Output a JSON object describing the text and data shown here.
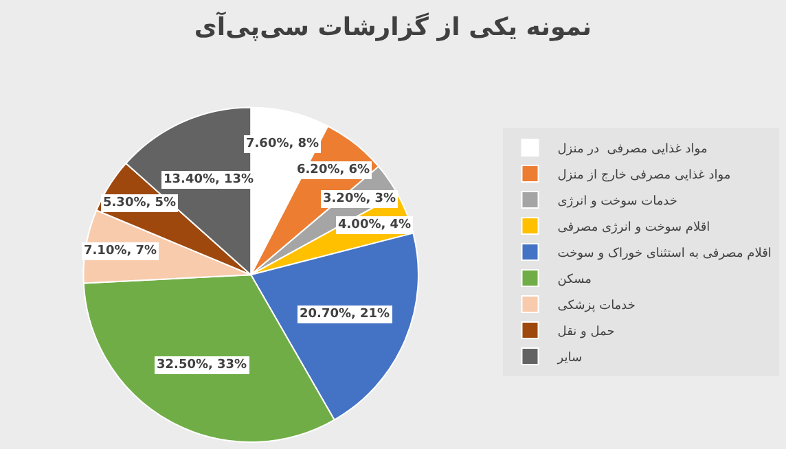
{
  "chart_data": {
    "type": "pie",
    "title": "نمونه یکی از گزارشات سی‌پی‌آی",
    "categories": [
      "مواد غذایی مصرفی  در منزل",
      "مواد غذایی مصرفی خارج از منزل",
      "خدمات سوخت و انرژی",
      "اقلام سوخت و انرژی مصرفی",
      "اقلام مصرفی به استثنای خوراک و سوخت",
      "مسکن",
      "خدمات پزشکی",
      "حمل و نقل",
      "سایر"
    ],
    "values": [
      7.6,
      6.2,
      3.2,
      4.0,
      20.7,
      32.5,
      7.1,
      5.3,
      13.4
    ],
    "value_labels": [
      "7.60%, 8%",
      "6.20%, 6%",
      "3.20%, 3%",
      "4.00%, 4%",
      "20.70%, 21%",
      "32.50%, 33%",
      "7.10%, 7%",
      "5.30%, 5%",
      "13.40%, 13%"
    ],
    "colors": [
      "#ffffff",
      "#ed7d31",
      "#a5a5a5",
      "#ffc000",
      "#4472c4",
      "#70ad47",
      "#f8cbad",
      "#9e480e",
      "#636363"
    ],
    "legend": "right"
  }
}
